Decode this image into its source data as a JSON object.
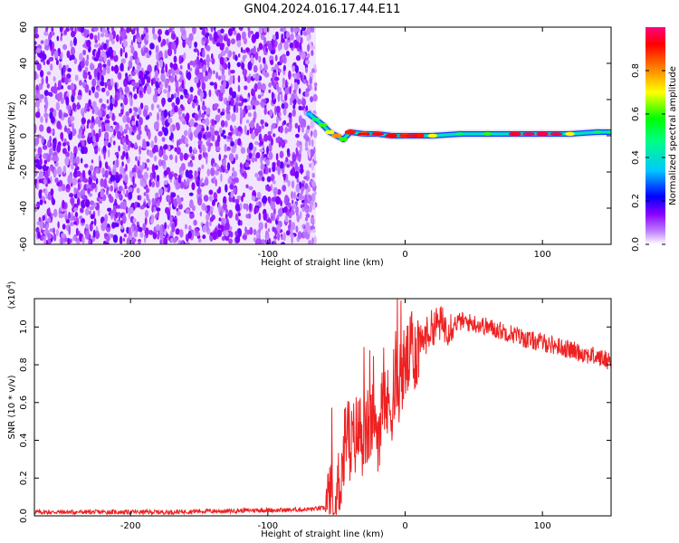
{
  "figure": {
    "title": "GN04.2024.016.17.44.E11"
  },
  "chart_data": [
    {
      "type": "heatmap",
      "name": "spectrogram",
      "xlabel": "Height of straight line (km)",
      "ylabel": "Frequency (Hz)",
      "xlim": [
        -270,
        150
      ],
      "ylim": [
        -60,
        60
      ],
      "x_ticks": [
        -200,
        -100,
        0,
        100
      ],
      "y_ticks": [
        -60,
        -40,
        -20,
        0,
        20,
        40,
        60
      ],
      "grid": false,
      "noise_region": {
        "x_from": -270,
        "x_to": -65,
        "description_level": "low-amplitude broadband purple speckle"
      },
      "signal_track": [
        {
          "x": -70,
          "y": 12,
          "amplitude": 0.35
        },
        {
          "x": -65,
          "y": 9,
          "amplitude": 0.5
        },
        {
          "x": -60,
          "y": 6,
          "amplitude": 0.6
        },
        {
          "x": -55,
          "y": 2,
          "amplitude": 0.7
        },
        {
          "x": -50,
          "y": 0,
          "amplitude": 0.8
        },
        {
          "x": -45,
          "y": -2,
          "amplitude": 0.6
        },
        {
          "x": -40,
          "y": 2,
          "amplitude": 0.9
        },
        {
          "x": -30,
          "y": 1,
          "amplitude": 0.7
        },
        {
          "x": -20,
          "y": 1,
          "amplitude": 0.85
        },
        {
          "x": -10,
          "y": 0,
          "amplitude": 0.9
        },
        {
          "x": 0,
          "y": 0,
          "amplitude": 0.85
        },
        {
          "x": 10,
          "y": 0,
          "amplitude": 0.9
        },
        {
          "x": 20,
          "y": 0,
          "amplitude": 0.7
        },
        {
          "x": 40,
          "y": 1,
          "amplitude": 0.5
        },
        {
          "x": 60,
          "y": 1,
          "amplitude": 0.6
        },
        {
          "x": 80,
          "y": 1,
          "amplitude": 0.9
        },
        {
          "x": 100,
          "y": 1,
          "amplitude": 0.95
        },
        {
          "x": 120,
          "y": 1,
          "amplitude": 0.7
        },
        {
          "x": 140,
          "y": 2,
          "amplitude": 0.5
        },
        {
          "x": 150,
          "y": 2,
          "amplitude": 0.5
        }
      ],
      "colorbar": {
        "label": "Normalized spectral amplitude",
        "ticks": [
          0.0,
          0.2,
          0.4,
          0.6,
          0.8
        ],
        "range": [
          0,
          1
        ],
        "colors": [
          "#ffffff",
          "#8a2be2",
          "#0000ff",
          "#00d0ff",
          "#00ff00",
          "#ffff00",
          "#ff0000",
          "#ff00ff"
        ]
      }
    },
    {
      "type": "line",
      "name": "snr",
      "xlabel": "Height of straight line (km)",
      "ylabel": "SNR (10 * v/v)",
      "y_multiplier_label": "(x10",
      "y_multiplier_exp": "4",
      "y_multiplier_close": ")",
      "xlim": [
        -270,
        150
      ],
      "ylim": [
        0.0,
        1.15
      ],
      "x_ticks": [
        -200,
        -100,
        0,
        100
      ],
      "y_ticks": [
        0.0,
        0.2,
        0.4,
        0.6,
        0.8,
        1.0
      ],
      "grid": false,
      "color": "#ee2222",
      "series": [
        {
          "x": [
            -270,
            -250,
            -230,
            -210,
            -190,
            -170,
            -150,
            -130,
            -110,
            -90,
            -70,
            -60,
            -55,
            -50,
            -45,
            -42,
            -40,
            -35,
            -30,
            -25,
            -20,
            -15,
            -10,
            -5,
            0,
            5,
            10,
            15,
            20,
            25,
            30,
            40,
            50,
            60,
            70,
            80,
            90,
            100,
            110,
            120,
            130,
            140,
            150
          ],
          "values": [
            0.02,
            0.02,
            0.02,
            0.02,
            0.02,
            0.02,
            0.025,
            0.025,
            0.03,
            0.03,
            0.035,
            0.04,
            0.05,
            0.1,
            0.3,
            0.5,
            0.35,
            0.45,
            0.4,
            0.5,
            0.45,
            0.55,
            0.6,
            0.7,
            0.8,
            0.85,
            0.9,
            0.95,
            1.0,
            1.02,
            1.0,
            1.03,
            1.02,
            1.0,
            0.98,
            0.96,
            0.93,
            0.92,
            0.9,
            0.88,
            0.86,
            0.84,
            0.82
          ]
        }
      ]
    }
  ]
}
